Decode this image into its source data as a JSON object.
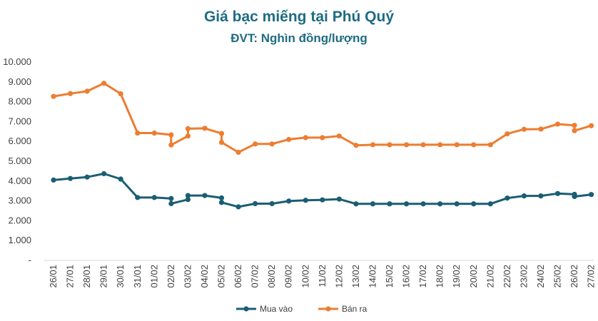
{
  "chart_data": {
    "type": "line",
    "title": "Giá bạc miếng tại Phú Quý",
    "subtitle": "ĐVT: Nghìn đồng/lượng",
    "ylim": [
      0,
      10000
    ],
    "yticks": [
      "-",
      "1.000",
      "2.000",
      "3.000",
      "4.000",
      "5.000",
      "6.000",
      "7.000",
      "8.000",
      "9.000",
      "10.000"
    ],
    "ytick_values": [
      0,
      1000,
      2000,
      3000,
      4000,
      5000,
      6000,
      7000,
      8000,
      9000,
      10000
    ],
    "categories": [
      "26/01",
      "27/01",
      "28/01",
      "29/01",
      "30/01",
      "31/01",
      "01/02",
      "02/02",
      "03/02",
      "04/02",
      "05/02",
      "06/02",
      "07/02",
      "08/02",
      "09/02",
      "10/02",
      "11/02",
      "12/02",
      "13/02",
      "14/02",
      "15/02",
      "16/02",
      "17/02",
      "18/02",
      "19/02",
      "20/02",
      "21/02",
      "22/02",
      "23/02",
      "24/02",
      "25/02",
      "26/02",
      "27/02"
    ],
    "grid": false,
    "legend_position": "bottom",
    "colors": {
      "mua_vao": "#1a5e74",
      "ban_ra": "#ed7d31",
      "title": "#1f6b84"
    },
    "series": [
      {
        "name": "Mua vào",
        "points": [
          [
            0,
            4050
          ],
          [
            1,
            4130
          ],
          [
            2,
            4200
          ],
          [
            3,
            4370
          ],
          [
            4,
            4100
          ],
          [
            5,
            3170
          ],
          [
            6,
            3170
          ],
          [
            7,
            3120
          ],
          [
            7,
            2860
          ],
          [
            8,
            3070
          ],
          [
            8,
            3270
          ],
          [
            9,
            3270
          ],
          [
            10,
            3150
          ],
          [
            10,
            2920
          ],
          [
            11,
            2700
          ],
          [
            12,
            2860
          ],
          [
            13,
            2860
          ],
          [
            14,
            2990
          ],
          [
            15,
            3030
          ],
          [
            16,
            3050
          ],
          [
            17,
            3090
          ],
          [
            18,
            2850
          ],
          [
            19,
            2850
          ],
          [
            20,
            2850
          ],
          [
            21,
            2850
          ],
          [
            22,
            2850
          ],
          [
            23,
            2850
          ],
          [
            24,
            2850
          ],
          [
            25,
            2850
          ],
          [
            26,
            2850
          ],
          [
            27,
            3140
          ],
          [
            28,
            3250
          ],
          [
            29,
            3250
          ],
          [
            30,
            3370
          ],
          [
            31,
            3330
          ],
          [
            31,
            3220
          ],
          [
            32,
            3320
          ]
        ]
      },
      {
        "name": "Bán ra",
        "points": [
          [
            0,
            8270
          ],
          [
            1,
            8410
          ],
          [
            2,
            8530
          ],
          [
            3,
            8930
          ],
          [
            4,
            8400
          ],
          [
            5,
            6420
          ],
          [
            6,
            6420
          ],
          [
            7,
            6330
          ],
          [
            7,
            5820
          ],
          [
            8,
            6270
          ],
          [
            8,
            6640
          ],
          [
            9,
            6660
          ],
          [
            10,
            6400
          ],
          [
            10,
            5950
          ],
          [
            11,
            5450
          ],
          [
            12,
            5870
          ],
          [
            13,
            5870
          ],
          [
            14,
            6100
          ],
          [
            15,
            6190
          ],
          [
            16,
            6190
          ],
          [
            17,
            6270
          ],
          [
            18,
            5800
          ],
          [
            19,
            5830
          ],
          [
            20,
            5830
          ],
          [
            21,
            5830
          ],
          [
            22,
            5830
          ],
          [
            23,
            5830
          ],
          [
            24,
            5830
          ],
          [
            25,
            5830
          ],
          [
            26,
            5830
          ],
          [
            27,
            6380
          ],
          [
            28,
            6610
          ],
          [
            29,
            6620
          ],
          [
            30,
            6870
          ],
          [
            31,
            6810
          ],
          [
            31,
            6540
          ],
          [
            32,
            6790
          ]
        ]
      }
    ]
  }
}
